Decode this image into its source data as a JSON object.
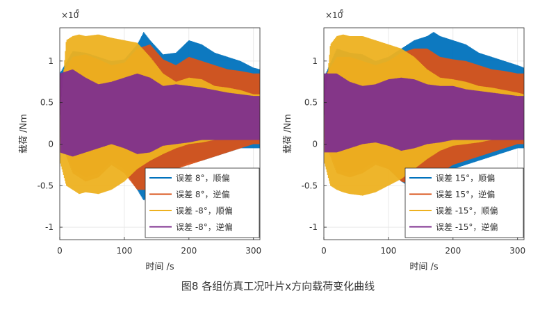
{
  "caption": "图8 各组仿真工况叶片x方向载荷变化曲线",
  "chart_data": [
    {
      "type": "line",
      "xlabel": "时间 /s",
      "ylabel": "载荷 /Nm",
      "exponent_label": "×10",
      "exponent_power": "6",
      "xlim": [
        0,
        310
      ],
      "ylim": [
        -1.15,
        1.4
      ],
      "xticks": [
        0,
        100,
        200,
        300
      ],
      "yticks": [
        -1,
        -0.5,
        0,
        0.5,
        1
      ],
      "ytick_labels": [
        "-1",
        "-0.5",
        "0",
        "0.5",
        "1"
      ],
      "grid": true,
      "legend_position": "bottom-right",
      "series": [
        {
          "name": "误差 8°，顺偏",
          "color": "#0072BD",
          "x": [
            0,
            20,
            40,
            60,
            80,
            100,
            120,
            130,
            140,
            160,
            180,
            200,
            220,
            240,
            260,
            280,
            300,
            310
          ],
          "upper": [
            0.85,
            1.12,
            1.1,
            1.05,
            1.0,
            1.02,
            1.2,
            1.35,
            1.25,
            1.08,
            1.1,
            1.25,
            1.2,
            1.1,
            1.05,
            1.0,
            0.92,
            0.9
          ],
          "lower": [
            0.1,
            -0.3,
            -0.4,
            -0.35,
            -0.2,
            -0.3,
            -0.55,
            -0.68,
            -0.6,
            -0.38,
            -0.3,
            -0.22,
            -0.2,
            -0.15,
            -0.1,
            -0.05,
            -0.05,
            -0.05
          ]
        },
        {
          "name": "误差 8°，逆偏",
          "color": "#D95319",
          "x": [
            0,
            20,
            40,
            60,
            80,
            100,
            120,
            140,
            160,
            180,
            200,
            220,
            240,
            260,
            280,
            300,
            310
          ],
          "upper": [
            0.8,
            1.05,
            1.08,
            1.02,
            0.95,
            0.98,
            1.15,
            1.2,
            1.02,
            0.95,
            1.05,
            1.0,
            0.95,
            0.9,
            0.88,
            0.85,
            0.85
          ],
          "lower": [
            0.05,
            -0.35,
            -0.45,
            -0.4,
            -0.25,
            -0.35,
            -0.55,
            -0.55,
            -0.35,
            -0.3,
            -0.25,
            -0.2,
            -0.15,
            -0.1,
            -0.05,
            0.0,
            0.0
          ]
        },
        {
          "name": "误差 -8°，顺偏",
          "color": "#EDB120",
          "x": [
            0,
            10,
            20,
            30,
            40,
            60,
            80,
            100,
            120,
            140,
            160,
            180,
            200,
            220,
            240,
            260,
            280,
            300,
            310
          ],
          "upper": [
            0.3,
            1.25,
            1.3,
            1.32,
            1.3,
            1.32,
            1.28,
            1.25,
            1.22,
            1.05,
            0.85,
            0.75,
            0.8,
            0.78,
            0.7,
            0.68,
            0.65,
            0.6,
            0.6
          ],
          "lower": [
            -0.2,
            -0.5,
            -0.55,
            -0.6,
            -0.58,
            -0.6,
            -0.55,
            -0.45,
            -0.3,
            -0.2,
            -0.12,
            -0.05,
            0.0,
            0.02,
            0.05,
            0.05,
            0.05,
            0.05,
            0.05
          ]
        },
        {
          "name": "误差 -8°，逆偏",
          "color": "#7E2F8E",
          "x": [
            0,
            20,
            40,
            60,
            80,
            100,
            120,
            140,
            160,
            180,
            200,
            220,
            240,
            260,
            280,
            300,
            310
          ],
          "upper": [
            0.85,
            0.9,
            0.8,
            0.72,
            0.75,
            0.8,
            0.85,
            0.8,
            0.7,
            0.72,
            0.7,
            0.68,
            0.65,
            0.62,
            0.6,
            0.58,
            0.58
          ],
          "lower": [
            -0.1,
            -0.15,
            -0.1,
            -0.05,
            0.0,
            -0.05,
            -0.12,
            -0.1,
            -0.02,
            0.0,
            0.02,
            0.05,
            0.05,
            0.05,
            0.05,
            0.05,
            0.05
          ]
        }
      ]
    },
    {
      "type": "line",
      "xlabel": "时间 /s",
      "ylabel": "载荷 /Nm",
      "exponent_label": "×10",
      "exponent_power": "6",
      "xlim": [
        0,
        310
      ],
      "ylim": [
        -1.15,
        1.4
      ],
      "xticks": [
        0,
        100,
        200,
        300
      ],
      "yticks": [
        -1,
        -0.5,
        0,
        0.5,
        1
      ],
      "ytick_labels": [
        "-1",
        "-0.5",
        "0",
        "0.5",
        "1"
      ],
      "grid": true,
      "legend_position": "bottom-right",
      "series": [
        {
          "name": "误差 15°，顺偏",
          "color": "#0072BD",
          "x": [
            0,
            20,
            40,
            60,
            80,
            100,
            120,
            140,
            160,
            170,
            180,
            200,
            220,
            240,
            260,
            280,
            300,
            310
          ],
          "upper": [
            0.8,
            1.15,
            1.1,
            1.08,
            1.0,
            1.05,
            1.15,
            1.25,
            1.3,
            1.35,
            1.3,
            1.25,
            1.2,
            1.1,
            1.05,
            1.0,
            0.95,
            0.92
          ],
          "lower": [
            0.1,
            -0.3,
            -0.35,
            -0.3,
            -0.2,
            -0.3,
            -0.45,
            -0.55,
            -0.6,
            -0.62,
            -0.5,
            -0.3,
            -0.25,
            -0.2,
            -0.15,
            -0.1,
            -0.05,
            -0.05
          ]
        },
        {
          "name": "误差 15°，逆偏",
          "color": "#D95319",
          "x": [
            0,
            20,
            40,
            60,
            80,
            100,
            120,
            140,
            160,
            180,
            200,
            220,
            240,
            260,
            280,
            300,
            310
          ],
          "upper": [
            0.8,
            1.05,
            1.05,
            1.0,
            0.95,
            1.0,
            1.1,
            1.15,
            1.15,
            1.05,
            1.02,
            1.0,
            0.95,
            0.9,
            0.88,
            0.85,
            0.85
          ],
          "lower": [
            0.05,
            -0.35,
            -0.4,
            -0.35,
            -0.25,
            -0.3,
            -0.45,
            -0.5,
            -0.5,
            -0.35,
            -0.25,
            -0.2,
            -0.15,
            -0.1,
            -0.05,
            0.0,
            0.0
          ]
        },
        {
          "name": "误差 -15°，顺偏",
          "color": "#EDB120",
          "x": [
            0,
            10,
            20,
            30,
            40,
            60,
            80,
            100,
            120,
            140,
            160,
            180,
            200,
            220,
            240,
            260,
            280,
            300,
            310
          ],
          "upper": [
            0.3,
            1.2,
            1.3,
            1.32,
            1.3,
            1.3,
            1.25,
            1.2,
            1.15,
            1.05,
            0.9,
            0.8,
            0.78,
            0.75,
            0.7,
            0.68,
            0.65,
            0.62,
            0.6
          ],
          "lower": [
            -0.2,
            -0.5,
            -0.55,
            -0.58,
            -0.6,
            -0.62,
            -0.58,
            -0.5,
            -0.42,
            -0.3,
            -0.18,
            -0.08,
            -0.02,
            0.0,
            0.02,
            0.05,
            0.05,
            0.05,
            0.05
          ]
        },
        {
          "name": "误差 -15°，逆偏",
          "color": "#7E2F8E",
          "x": [
            0,
            20,
            40,
            60,
            80,
            100,
            120,
            140,
            160,
            180,
            200,
            220,
            240,
            260,
            280,
            300,
            310
          ],
          "upper": [
            0.85,
            0.85,
            0.75,
            0.7,
            0.72,
            0.78,
            0.8,
            0.78,
            0.72,
            0.7,
            0.7,
            0.66,
            0.64,
            0.62,
            0.6,
            0.58,
            0.58
          ],
          "lower": [
            -0.1,
            -0.1,
            -0.05,
            0.0,
            0.02,
            -0.02,
            -0.08,
            -0.05,
            0.0,
            0.02,
            0.05,
            0.05,
            0.05,
            0.05,
            0.05,
            0.05,
            0.05
          ]
        }
      ]
    }
  ]
}
